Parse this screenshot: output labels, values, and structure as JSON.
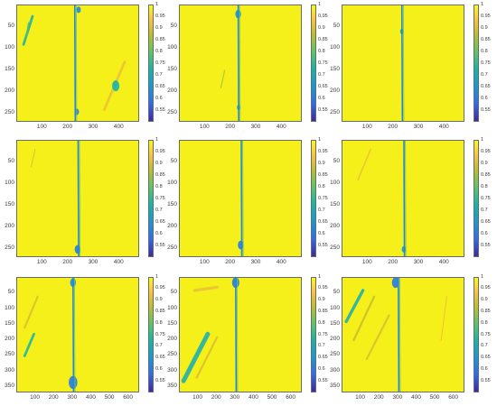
{
  "chart_data": [
    {
      "type": "heatmap",
      "yticks": [
        "50",
        "100",
        "150",
        "200",
        "250"
      ],
      "ylim": [
        0,
        270
      ],
      "xticks": [
        "100",
        "200",
        "300",
        "400"
      ],
      "xlim": [
        0,
        480
      ],
      "colorbar_ticks": [
        "1",
        "0.95",
        "0.9",
        "0.85",
        "0.8",
        "0.75",
        "0.7",
        "0.65",
        "0.6",
        "0.55"
      ],
      "clim": [
        0.5,
        1
      ],
      "crack_x": 225,
      "features": [
        {
          "kind": "diag",
          "x1": 60,
          "y1": 25,
          "x2": 25,
          "y2": 90,
          "w": 5,
          "v": 0.7
        },
        {
          "kind": "diag",
          "x1": 45,
          "y1": 40,
          "x2": 35,
          "y2": 75,
          "w": 3,
          "v": 0.78
        },
        {
          "kind": "diag",
          "x1": 420,
          "y1": 130,
          "x2": 340,
          "y2": 240,
          "w": 5,
          "v": 0.92
        },
        {
          "kind": "spot",
          "x": 385,
          "y": 185,
          "r": 10,
          "v": 0.72
        },
        {
          "kind": "spot",
          "x": 233,
          "y": 245,
          "r": 6,
          "v": 0.6
        },
        {
          "kind": "spot",
          "x": 240,
          "y": 10,
          "r": 6,
          "v": 0.62
        }
      ]
    },
    {
      "type": "heatmap",
      "yticks": [
        "50",
        "100",
        "150",
        "200",
        "250"
      ],
      "ylim": [
        0,
        270
      ],
      "xticks": [
        "100",
        "200",
        "300",
        "400"
      ],
      "xlim": [
        0,
        480
      ],
      "colorbar_ticks": [
        "1",
        "0.95",
        "0.9",
        "0.85",
        "0.8",
        "0.75",
        "0.7",
        "0.65",
        "0.6",
        "0.55"
      ],
      "clim": [
        0.5,
        1
      ],
      "crack_x": 228,
      "features": [
        {
          "kind": "spot",
          "x": 228,
          "y": 20,
          "r": 8,
          "v": 0.65
        },
        {
          "kind": "spot",
          "x": 230,
          "y": 235,
          "r": 5,
          "v": 0.7
        },
        {
          "kind": "diag",
          "x1": 175,
          "y1": 150,
          "x2": 160,
          "y2": 190,
          "w": 2,
          "v": 0.85
        }
      ]
    },
    {
      "type": "heatmap",
      "yticks": [
        "50",
        "100",
        "150",
        "200",
        "250"
      ],
      "ylim": [
        0,
        270
      ],
      "xticks": [
        "100",
        "200",
        "300",
        "400"
      ],
      "xlim": [
        0,
        480
      ],
      "colorbar_ticks": [
        "1",
        "0.95",
        "0.9",
        "0.85",
        "0.8",
        "0.75",
        "0.7",
        "0.65",
        "0.6",
        "0.55"
      ],
      "clim": [
        0.5,
        1
      ],
      "crack_x": 232,
      "features": [
        {
          "kind": "spot",
          "x": 232,
          "y": 60,
          "r": 5,
          "v": 0.7
        }
      ]
    },
    {
      "type": "heatmap",
      "yticks": [
        "50",
        "100",
        "150",
        "200",
        "250"
      ],
      "ylim": [
        0,
        270
      ],
      "xticks": [
        "100",
        "200",
        "300",
        "400"
      ],
      "xlim": [
        0,
        480
      ],
      "colorbar_ticks": [
        "1",
        "0.95",
        "0.9",
        "0.85",
        "0.8",
        "0.75",
        "0.7",
        "0.65",
        "0.6",
        "0.55"
      ],
      "clim": [
        0.5,
        1
      ],
      "crack_x": 238,
      "features": [
        {
          "kind": "spot",
          "x": 236,
          "y": 250,
          "r": 8,
          "v": 0.6
        },
        {
          "kind": "diag",
          "x1": 70,
          "y1": 20,
          "x2": 55,
          "y2": 60,
          "w": 2,
          "v": 0.9
        }
      ]
    },
    {
      "type": "heatmap",
      "yticks": [
        "50",
        "100",
        "150",
        "200",
        "250"
      ],
      "ylim": [
        0,
        270
      ],
      "xticks": [
        "100",
        "200",
        "300",
        "400"
      ],
      "xlim": [
        0,
        480
      ],
      "colorbar_ticks": [
        "1",
        "0.95",
        "0.9",
        "0.85",
        "0.8",
        "0.75",
        "0.7",
        "0.65",
        "0.6",
        "0.55"
      ],
      "clim": [
        0.5,
        1
      ],
      "crack_x": 240,
      "features": [
        {
          "kind": "spot",
          "x": 238,
          "y": 240,
          "r": 8,
          "v": 0.6
        }
      ]
    },
    {
      "type": "heatmap",
      "yticks": [
        "50",
        "100",
        "150",
        "200",
        "250"
      ],
      "ylim": [
        0,
        270
      ],
      "xticks": [
        "100",
        "200",
        "300",
        "400"
      ],
      "xlim": [
        0,
        480
      ],
      "colorbar_ticks": [
        "1",
        "0.95",
        "0.9",
        "0.85",
        "0.8",
        "0.75",
        "0.7",
        "0.65",
        "0.6",
        "0.55"
      ],
      "clim": [
        0.5,
        1
      ],
      "crack_x": 240,
      "features": [
        {
          "kind": "diag",
          "x1": 110,
          "y1": 20,
          "x2": 60,
          "y2": 90,
          "w": 3,
          "v": 0.92
        },
        {
          "kind": "spot",
          "x": 240,
          "y": 250,
          "r": 6,
          "v": 0.65
        }
      ]
    },
    {
      "type": "heatmap",
      "yticks": [
        "50",
        "100",
        "150",
        "200",
        "250",
        "300",
        "350"
      ],
      "ylim": [
        0,
        370
      ],
      "xticks": [
        "100",
        "200",
        "300",
        "400",
        "500",
        "600"
      ],
      "xlim": [
        0,
        660
      ],
      "colorbar_ticks": [
        "1",
        "0.95",
        "0.9",
        "0.85",
        "0.8",
        "0.75",
        "0.7",
        "0.65",
        "0.6",
        "0.55"
      ],
      "clim": [
        0.5,
        1
      ],
      "crack_x": 300,
      "features": [
        {
          "kind": "diag",
          "x1": 110,
          "y1": 60,
          "x2": 40,
          "y2": 160,
          "w": 4,
          "v": 0.9
        },
        {
          "kind": "diag",
          "x1": 90,
          "y1": 180,
          "x2": 40,
          "y2": 250,
          "w": 5,
          "v": 0.72
        },
        {
          "kind": "spot",
          "x": 300,
          "y": 335,
          "r": 12,
          "v": 0.6
        },
        {
          "kind": "spot",
          "x": 300,
          "y": 15,
          "r": 8,
          "v": 0.62
        }
      ]
    },
    {
      "type": "heatmap",
      "yticks": [
        "50",
        "100",
        "150",
        "200",
        "250",
        "300",
        "350"
      ],
      "ylim": [
        0,
        370
      ],
      "xticks": [
        "100",
        "200",
        "300",
        "400",
        "500",
        "600"
      ],
      "xlim": [
        0,
        660
      ],
      "colorbar_ticks": [
        "1",
        "0.95",
        "0.9",
        "0.85",
        "0.8",
        "0.75",
        "0.7",
        "0.65",
        "0.6",
        "0.55"
      ],
      "clim": [
        0.5,
        1
      ],
      "crack_x": 300,
      "features": [
        {
          "kind": "diag",
          "x1": 150,
          "y1": 180,
          "x2": 20,
          "y2": 330,
          "w": 9,
          "v": 0.7
        },
        {
          "kind": "diag",
          "x1": 200,
          "y1": 190,
          "x2": 90,
          "y2": 320,
          "w": 4,
          "v": 0.9
        },
        {
          "kind": "diag",
          "x1": 80,
          "y1": 40,
          "x2": 200,
          "y2": 30,
          "w": 6,
          "v": 0.92
        },
        {
          "kind": "spot",
          "x": 300,
          "y": 15,
          "r": 10,
          "v": 0.6
        }
      ]
    },
    {
      "type": "heatmap",
      "yticks": [
        "50",
        "100",
        "150",
        "200",
        "250",
        "300",
        "350"
      ],
      "ylim": [
        0,
        370
      ],
      "xticks": [
        "100",
        "200",
        "300",
        "400",
        "500",
        "600"
      ],
      "xlim": [
        0,
        660
      ],
      "colorbar_ticks": [
        "1",
        "0.95",
        "0.9",
        "0.85",
        "0.8",
        "0.75",
        "0.7",
        "0.65",
        "0.6",
        "0.55"
      ],
      "clim": [
        0.5,
        1
      ],
      "crack_x": 300,
      "features": [
        {
          "kind": "diag",
          "x1": 110,
          "y1": 40,
          "x2": 20,
          "y2": 140,
          "w": 6,
          "v": 0.7
        },
        {
          "kind": "diag",
          "x1": 170,
          "y1": 60,
          "x2": 60,
          "y2": 200,
          "w": 4,
          "v": 0.88
        },
        {
          "kind": "diag",
          "x1": 250,
          "y1": 120,
          "x2": 130,
          "y2": 260,
          "w": 4,
          "v": 0.9
        },
        {
          "kind": "spot",
          "x": 285,
          "y": 15,
          "r": 10,
          "v": 0.6
        },
        {
          "kind": "diag",
          "x1": 560,
          "y1": 60,
          "x2": 530,
          "y2": 200,
          "w": 2,
          "v": 0.92
        }
      ]
    }
  ]
}
